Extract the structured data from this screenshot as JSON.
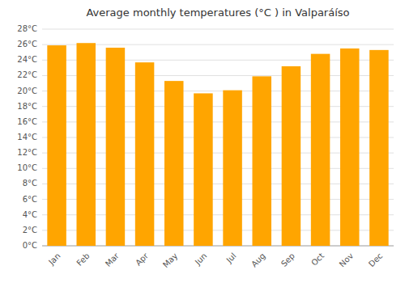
{
  "chart_data": {
    "type": "bar",
    "title": "Average monthly temperatures (°C ) in Valparáíso",
    "categories": [
      "Jan",
      "Feb",
      "Mar",
      "Apr",
      "May",
      "Jun",
      "Jul",
      "Aug",
      "Sep",
      "Oct",
      "Nov",
      "Dec"
    ],
    "values": [
      25.9,
      26.2,
      25.6,
      23.7,
      21.3,
      19.7,
      20.1,
      21.9,
      23.2,
      24.8,
      25.5,
      25.3
    ],
    "color": "#FFA500",
    "ylim": [
      0,
      28
    ],
    "yticks": [
      {
        "value": 0,
        "label": "0°C"
      },
      {
        "value": 2,
        "label": "2°C"
      },
      {
        "value": 4,
        "label": "4°C"
      },
      {
        "value": 6,
        "label": "6°C"
      },
      {
        "value": 8,
        "label": "8°C"
      },
      {
        "value": 10,
        "label": "10°C"
      },
      {
        "value": 12,
        "label": "12°C"
      },
      {
        "value": 14,
        "label": "14°C"
      },
      {
        "value": 16,
        "label": "16°C"
      },
      {
        "value": 18,
        "label": "18°C"
      },
      {
        "value": 20,
        "label": "20°C"
      },
      {
        "value": 22,
        "label": "22°C"
      },
      {
        "value": 24,
        "label": "24°C"
      },
      {
        "value": 26,
        "label": "26°C"
      },
      {
        "value": 28,
        "label": "28°C"
      }
    ],
    "grid": true
  }
}
